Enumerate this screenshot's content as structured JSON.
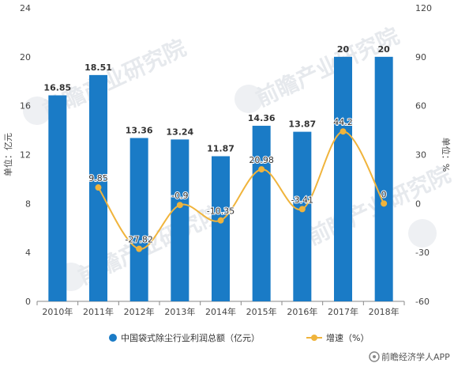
{
  "chart_data": {
    "type": "bar",
    "categories": [
      "2010年",
      "2011年",
      "2012年",
      "2013年",
      "2014年",
      "2015年",
      "2016年",
      "2017年",
      "2018年"
    ],
    "series": [
      {
        "name": "中国袋式除尘行业利润总额（亿元）",
        "type": "bar",
        "axis": "left",
        "color": "#1a7bc6",
        "values": [
          16.85,
          18.51,
          13.36,
          13.24,
          11.87,
          14.36,
          13.87,
          20,
          20
        ],
        "labels": [
          "16.85",
          "18.51",
          "13.36",
          "13.24",
          "11.87",
          "14.36",
          "13.87",
          "20",
          "20"
        ]
      },
      {
        "name": "增速（%）",
        "type": "line",
        "axis": "right",
        "color": "#f0b43c",
        "values": [
          null,
          9.85,
          -27.82,
          -0.9,
          -10.35,
          20.98,
          -3.41,
          44.2,
          0
        ],
        "labels": [
          "",
          "9.85",
          "-27.82",
          "-0.9",
          "-10.35",
          "20.98",
          "-3.41",
          "44.2",
          "0"
        ]
      }
    ],
    "ylabel": "单位：亿元",
    "y2label": "单位：%",
    "ylim": [
      0,
      24
    ],
    "yticks": [
      0,
      4,
      8,
      12,
      16,
      20,
      24
    ],
    "y2lim": [
      -60,
      120
    ],
    "y2ticks": [
      -60,
      -30,
      0,
      30,
      60,
      90,
      120
    ],
    "grid": false,
    "legend": "bottom"
  },
  "footer": {
    "brand": "前瞻经济学人APP"
  }
}
